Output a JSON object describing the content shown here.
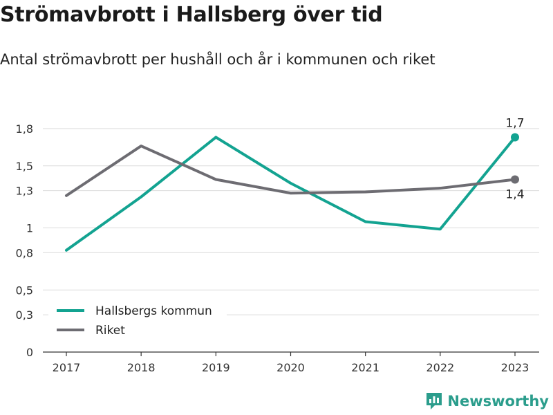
{
  "header": {
    "title": "Strömavbrott i Hallsberg över tid",
    "subtitle": "Antal strömavbrott per hushåll och år i kommunen och riket"
  },
  "brand": {
    "name": "Newsworthy",
    "icon": "newsworthy-logo-icon",
    "color": "#2b9d8c"
  },
  "chart_data": {
    "type": "line",
    "title": "Strömavbrott i Hallsberg över tid",
    "subtitle": "Antal strömavbrott per hushåll och år i kommunen och riket",
    "xlabel": "",
    "ylabel": "",
    "x": [
      "2017",
      "2018",
      "2019",
      "2020",
      "2021",
      "2022",
      "2023"
    ],
    "ylim": [
      0,
      2.0
    ],
    "yticks": [
      {
        "value": 0,
        "label": "0"
      },
      {
        "value": 0.3,
        "label": "0,3"
      },
      {
        "value": 0.5,
        "label": "0,5"
      },
      {
        "value": 0.8,
        "label": "0,8"
      },
      {
        "value": 1.0,
        "label": "1"
      },
      {
        "value": 1.3,
        "label": "1,3"
      },
      {
        "value": 1.5,
        "label": "1,5"
      },
      {
        "value": 1.8,
        "label": "1,8"
      }
    ],
    "grid": true,
    "legend_position": "bottom-left",
    "series": [
      {
        "name": "Hallsbergs kommun",
        "color": "#13a391",
        "values": [
          0.82,
          1.25,
          1.73,
          1.36,
          1.05,
          0.99,
          1.73
        ],
        "end_label": "1,7"
      },
      {
        "name": "Riket",
        "color": "#6d6c72",
        "values": [
          1.26,
          1.66,
          1.39,
          1.28,
          1.29,
          1.32,
          1.39
        ],
        "end_label": "1,4"
      }
    ]
  }
}
